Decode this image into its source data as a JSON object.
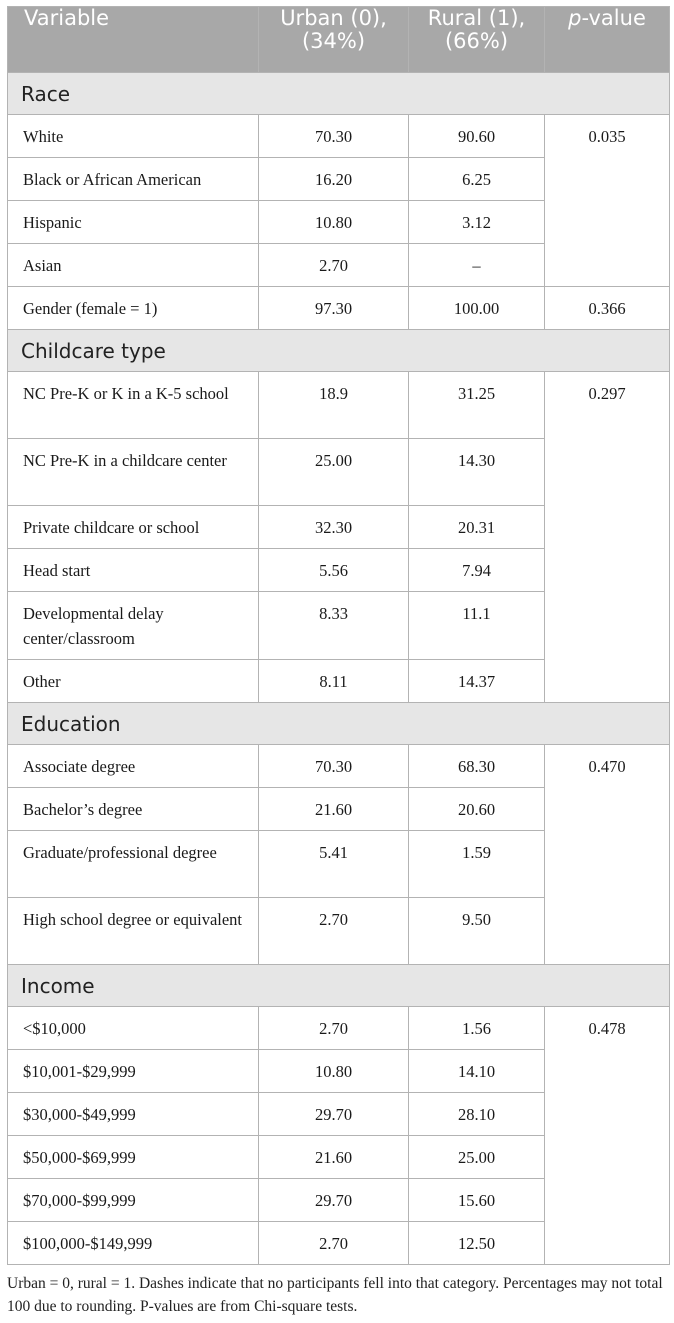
{
  "header": {
    "variable": "Variable",
    "urban": "Urban (0), (34%)",
    "rural": "Rural (1), (66%)",
    "p_letter": "p",
    "p_rest": "-value"
  },
  "sections": [
    {
      "title": "Race",
      "pvalue": "0.035",
      "rows": [
        {
          "label": "White",
          "urban": "70.30",
          "rural": "90.60"
        },
        {
          "label": "Black or African American",
          "urban": "16.20",
          "rural": "6.25"
        },
        {
          "label": "Hispanic",
          "urban": "10.80",
          "rural": "3.12"
        },
        {
          "label": "Asian",
          "urban": "2.70",
          "rural": "–"
        }
      ],
      "extra": {
        "label": "Gender (female = 1)",
        "urban": "97.30",
        "rural": "100.00",
        "pvalue": "0.366"
      }
    },
    {
      "title": "Childcare type",
      "pvalue": "0.297",
      "rows": [
        {
          "label": "NC Pre-K or K in a K-5 school",
          "urban": "18.9",
          "rural": "31.25"
        },
        {
          "label": "NC Pre-K in a childcare center",
          "urban": "25.00",
          "rural": "14.30"
        },
        {
          "label": "Private childcare or school",
          "urban": "32.30",
          "rural": "20.31"
        },
        {
          "label": "Head start",
          "urban": "5.56",
          "rural": "7.94"
        },
        {
          "label": "Developmental delay center/classroom",
          "urban": "8.33",
          "rural": "11.1"
        },
        {
          "label": "Other",
          "urban": "8.11",
          "rural": "14.37"
        }
      ]
    },
    {
      "title": "Education",
      "pvalue": "0.470",
      "rows": [
        {
          "label": "Associate degree",
          "urban": "70.30",
          "rural": "68.30"
        },
        {
          "label": "Bachelor’s degree",
          "urban": "21.60",
          "rural": "20.60"
        },
        {
          "label": "Graduate/professional degree",
          "urban": "5.41",
          "rural": "1.59"
        },
        {
          "label": "High school degree or equivalent",
          "urban": "2.70",
          "rural": "9.50"
        }
      ]
    },
    {
      "title": "Income",
      "pvalue": "0.478",
      "rows": [
        {
          "label": "<$10,000",
          "urban": "2.70",
          "rural": "1.56"
        },
        {
          "label": "$10,001-$29,999",
          "urban": "10.80",
          "rural": "14.10"
        },
        {
          "label": "$30,000-$49,999",
          "urban": "29.70",
          "rural": "28.10"
        },
        {
          "label": "$50,000-$69,999",
          "urban": "21.60",
          "rural": "25.00"
        },
        {
          "label": "$70,000-$99,999",
          "urban": "29.70",
          "rural": "15.60"
        },
        {
          "label": "$100,000-$149,999",
          "urban": "2.70",
          "rural": "12.50"
        }
      ]
    }
  ],
  "footnote": "Urban = 0, rural = 1. Dashes indicate that no participants fell into that category. Percentages may not total 100 due to rounding. P-values are from Chi-square tests."
}
